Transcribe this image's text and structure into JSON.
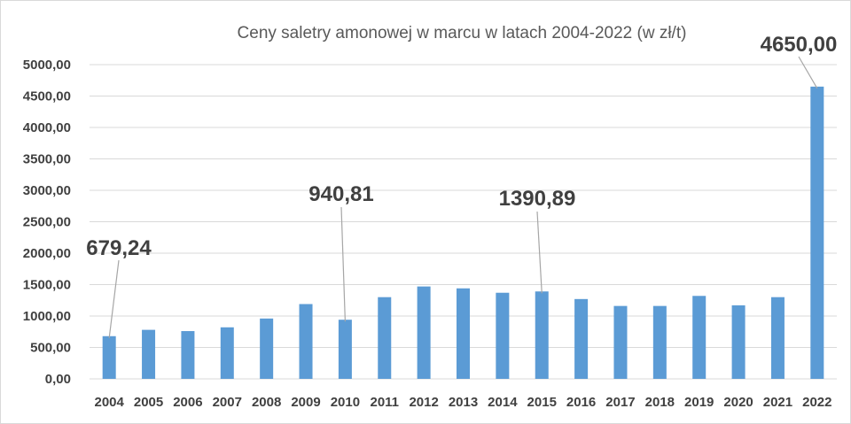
{
  "chart_data": {
    "type": "bar",
    "title": "Ceny saletry amonowej w marcu w latach 2004-2022 (w zł/t)",
    "xlabel": "",
    "ylabel": "",
    "ylim": [
      0,
      5000
    ],
    "yticks": [
      "0,00",
      "500,00",
      "1000,00",
      "1500,00",
      "2000,00",
      "2500,00",
      "3000,00",
      "3500,00",
      "4000,00",
      "4500,00",
      "5000,00"
    ],
    "categories": [
      "2004",
      "2005",
      "2006",
      "2007",
      "2008",
      "2009",
      "2010",
      "2011",
      "2012",
      "2013",
      "2014",
      "2015",
      "2016",
      "2017",
      "2018",
      "2019",
      "2020",
      "2021",
      "2022"
    ],
    "values": [
      679.24,
      780,
      760,
      820,
      960,
      1190,
      940.81,
      1300,
      1470,
      1440,
      1370,
      1390.89,
      1270,
      1160,
      1160,
      1320,
      1170,
      1300,
      4650.0
    ],
    "grid": true,
    "legend": "none",
    "bar_color": "#5b9bd5",
    "callouts": [
      {
        "category": "2004",
        "label": "679,24"
      },
      {
        "category": "2010",
        "label": "940,81"
      },
      {
        "category": "2015",
        "label": "1390,89"
      },
      {
        "category": "2022",
        "label": "4650,00"
      }
    ]
  }
}
